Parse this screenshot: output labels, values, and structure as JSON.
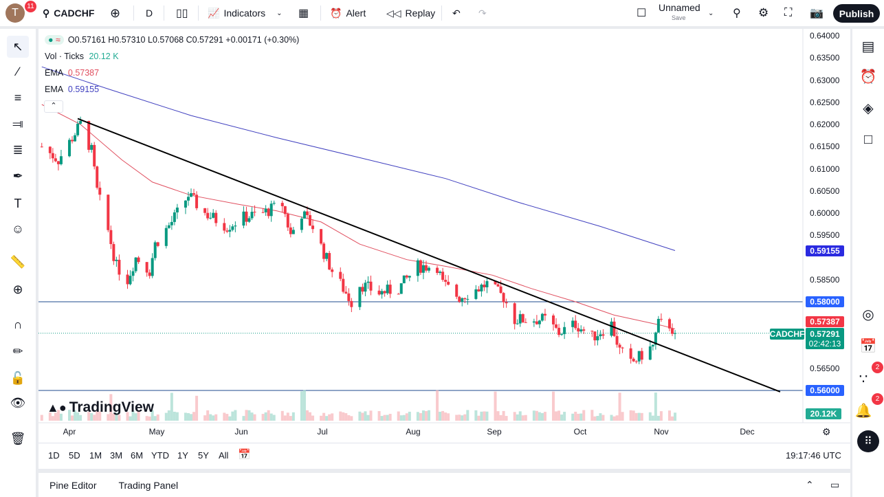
{
  "topbar": {
    "avatar_letter": "T",
    "notif_count": "11",
    "symbol": "CADCHF",
    "interval": "D",
    "indicators": "Indicators",
    "alert": "Alert",
    "replay": "Replay",
    "layout_name": "Unnamed",
    "layout_save": "Save",
    "publish": "Publish"
  },
  "legend": {
    "ohlc": "O0.57161 H0.57310 L0.57068 C0.57291 +0.00171 (+0.30%)",
    "vol_label": "Vol · Ticks",
    "vol_value": "20.12 K",
    "ema1_label": "EMA",
    "ema1_value": "0.57387",
    "ema2_label": "EMA",
    "ema2_value": "0.59155"
  },
  "colors": {
    "up": "#089981",
    "down": "#f23645",
    "ema_fast": "#e04f5f",
    "ema_slow": "#3f3fbf",
    "hline": "#2962ff",
    "trendline": "#000000"
  },
  "price_axis": {
    "ticks": [
      "0.64000",
      "0.63500",
      "0.63000",
      "0.62500",
      "0.62000",
      "0.61500",
      "0.61000",
      "0.60500",
      "0.60000",
      "0.59500",
      "0.58500",
      "0.56500"
    ],
    "labels": {
      "ema_slow": "0.59155",
      "hline_top": "0.58000",
      "ema_fast": "0.57387",
      "last": "0.57291",
      "countdown": "02:42:13",
      "symbol": "CADCHF",
      "hline_bottom": "0.56000",
      "volume": "20.12K"
    }
  },
  "time_axis": {
    "months": [
      "Apr",
      "May",
      "Jun",
      "Jul",
      "Aug",
      "Sep",
      "Oct",
      "Nov",
      "Dec"
    ]
  },
  "ranges": [
    "1D",
    "5D",
    "1M",
    "3M",
    "6M",
    "YTD",
    "1Y",
    "5Y",
    "All"
  ],
  "clock": "19:17:46 UTC",
  "bottom": {
    "pine": "Pine Editor",
    "trading": "Trading Panel"
  },
  "watermark": "TradingView",
  "right_badges": {
    "ideas": "2",
    "alerts": "2"
  },
  "chart_data": {
    "type": "candlestick",
    "symbol": "CADCHF",
    "interval": "D",
    "close_path": [
      [
        "03-22",
        0.615
      ],
      [
        "03-28",
        0.612
      ],
      [
        "04-05",
        0.62
      ],
      [
        "04-09",
        0.614
      ],
      [
        "04-11",
        0.605
      ],
      [
        "04-15",
        0.596
      ],
      [
        "04-18",
        0.588
      ],
      [
        "04-22",
        0.585
      ],
      [
        "04-25",
        0.59
      ],
      [
        "04-30",
        0.587
      ],
      [
        "05-02",
        0.593
      ],
      [
        "05-08",
        0.598
      ],
      [
        "05-14",
        0.604
      ],
      [
        "05-20",
        0.6
      ],
      [
        "05-28",
        0.597
      ],
      [
        "06-03",
        0.599
      ],
      [
        "06-10",
        0.6
      ],
      [
        "06-17",
        0.602
      ],
      [
        "06-20",
        0.595
      ],
      [
        "06-24",
        0.6
      ],
      [
        "06-28",
        0.597
      ],
      [
        "07-02",
        0.591
      ],
      [
        "07-05",
        0.587
      ],
      [
        "07-12",
        0.58
      ],
      [
        "07-15",
        0.584
      ],
      [
        "07-22",
        0.582
      ],
      [
        "07-29",
        0.583
      ],
      [
        "08-05",
        0.588
      ],
      [
        "08-12",
        0.588
      ],
      [
        "08-14",
        0.584
      ],
      [
        "08-20",
        0.581
      ],
      [
        "08-30",
        0.584
      ],
      [
        "09-05",
        0.581
      ],
      [
        "09-09",
        0.576
      ],
      [
        "09-20",
        0.576
      ],
      [
        "09-25",
        0.573
      ],
      [
        "10-01",
        0.575
      ],
      [
        "10-07",
        0.572
      ],
      [
        "10-14",
        0.575
      ],
      [
        "10-17",
        0.569
      ],
      [
        "10-21",
        0.566
      ],
      [
        "10-25",
        0.568
      ],
      [
        "10-29",
        0.57
      ],
      [
        "10-31",
        0.575
      ],
      [
        "11-04",
        0.5748
      ],
      [
        "11-06",
        0.57291
      ]
    ],
    "ema_fast": [
      [
        "03-22",
        0.6245
      ],
      [
        "04-05",
        0.62
      ],
      [
        "04-20",
        0.612
      ],
      [
        "05-01",
        0.607
      ],
      [
        "05-15",
        0.604
      ],
      [
        "06-01",
        0.602
      ],
      [
        "06-15",
        0.6005
      ],
      [
        "07-01",
        0.598
      ],
      [
        "07-15",
        0.593
      ],
      [
        "08-01",
        0.5895
      ],
      [
        "08-15",
        0.588
      ],
      [
        "09-01",
        0.586
      ],
      [
        "09-15",
        0.583
      ],
      [
        "10-01",
        0.58
      ],
      [
        "10-15",
        0.577
      ],
      [
        "11-01",
        0.5747
      ],
      [
        "11-06",
        0.57387
      ]
    ],
    "ema_slow": [
      [
        "03-22",
        0.633
      ],
      [
        "04-15",
        0.628
      ],
      [
        "05-15",
        0.622
      ],
      [
        "06-15",
        0.617
      ],
      [
        "07-15",
        0.6125
      ],
      [
        "08-15",
        0.6078
      ],
      [
        "09-10",
        0.6025
      ],
      [
        "10-10",
        0.597
      ],
      [
        "11-06",
        0.59155
      ]
    ],
    "trendline": [
      [
        "04-04",
        0.6213
      ],
      [
        "12-14",
        0.5597
      ]
    ],
    "hlines": [
      0.58,
      0.56
    ],
    "ylim": [
      0.556,
      0.641
    ]
  }
}
